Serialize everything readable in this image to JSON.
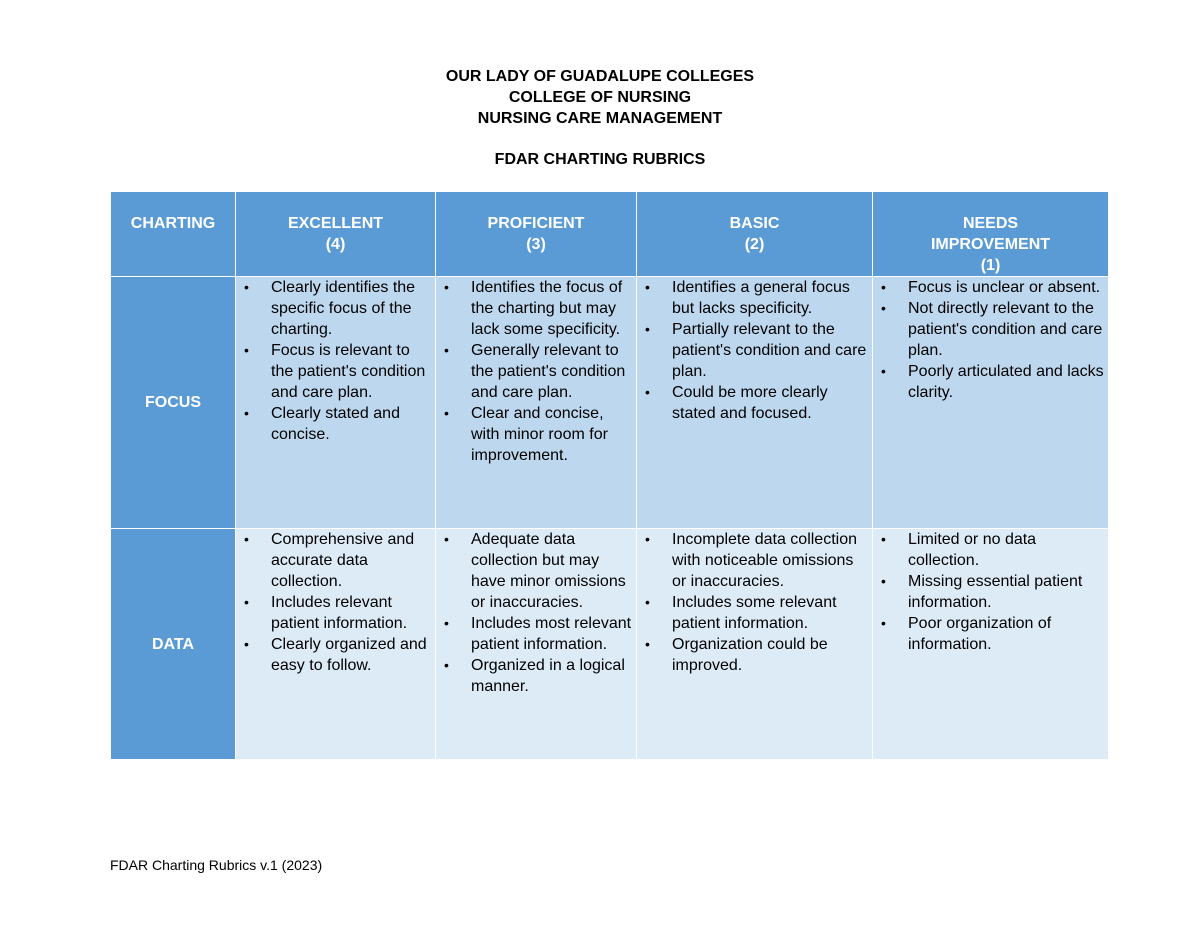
{
  "header": {
    "line1": "OUR LADY OF GUADALUPE COLLEGES",
    "line2": "COLLEGE OF NURSING",
    "line3": "NURSING CARE MANAGEMENT",
    "title": "FDAR CHARTING RUBRICS"
  },
  "table": {
    "columns": [
      {
        "label": "CHARTING",
        "score": ""
      },
      {
        "label": "EXCELLENT",
        "score": "(4)"
      },
      {
        "label": "PROFICIENT",
        "score": "(3)"
      },
      {
        "label": "BASIC",
        "score": "(2)"
      },
      {
        "label": "NEEDS\nIMPROVEMENT",
        "score": "(1)"
      }
    ],
    "rows": [
      {
        "label": "FOCUS",
        "cells": [
          [
            "Clearly identifies the specific focus of the charting.",
            "Focus is relevant to the patient's condition and care plan.",
            "Clearly stated and concise."
          ],
          [
            "Identifies the focus of the charting but may lack some specificity.",
            "Generally relevant to the patient's condition and care plan.",
            "Clear and concise, with minor room for improvement."
          ],
          [
            "Identifies a general focus but lacks specificity.",
            "Partially relevant to the patient's condition and care plan.",
            "Could be more clearly stated and focused."
          ],
          [
            "Focus is unclear or absent.",
            "Not directly relevant to the patient's condition and care plan.",
            "Poorly articulated and lacks clarity."
          ]
        ]
      },
      {
        "label": "DATA",
        "cells": [
          [
            "Comprehensive and accurate data collection.",
            "Includes relevant patient information.",
            "Clearly organized and easy to follow."
          ],
          [
            "Adequate data collection but may have minor omissions or inaccuracies.",
            "Includes most relevant patient information.",
            "Organized in a logical manner."
          ],
          [
            "Incomplete data collection with noticeable omissions or inaccuracies.",
            "Includes some relevant patient information.",
            "Organization could be improved."
          ],
          [
            "Limited or no data collection.",
            "Missing essential patient information.",
            "Poor organization of information."
          ]
        ]
      }
    ]
  },
  "footer": {
    "text": "FDAR Charting Rubrics v.1 (2023)"
  },
  "colors": {
    "header_blue": "#5b9bd5",
    "focus_row": "#bdd7ee",
    "data_row": "#ddebf7"
  }
}
